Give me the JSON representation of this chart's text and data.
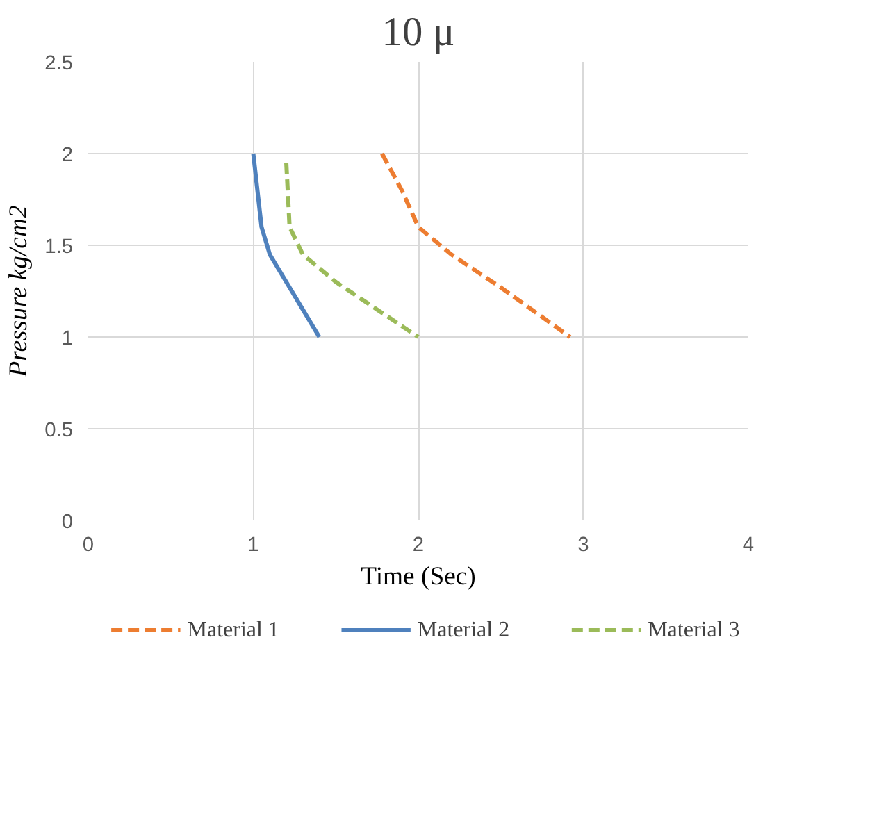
{
  "chart_data": {
    "type": "line",
    "title": "10 μ",
    "xlabel": "Time (Sec)",
    "ylabel": "Pressure kg/cm2",
    "xlim": [
      0,
      4
    ],
    "xticks": [
      0,
      1,
      2,
      3,
      4
    ],
    "ylim": [
      0,
      2.5
    ],
    "yticks": [
      0,
      0.5,
      1,
      1.5,
      2,
      2.5
    ],
    "grid": true,
    "legend": "bottom",
    "marker": "none",
    "series": [
      {
        "name": "Material 1",
        "color": "#ed7d31",
        "line_style": "dashed",
        "x": [
          1.78,
          1.9,
          2.0,
          2.2,
          2.5,
          2.92
        ],
        "values": [
          2.0,
          1.8,
          1.6,
          1.45,
          1.27,
          1.0
        ]
      },
      {
        "name": "Material 2",
        "color": "#4f81bd",
        "line_style": "solid",
        "x": [
          1.0,
          1.05,
          1.1,
          1.2,
          1.3,
          1.4
        ],
        "values": [
          2.0,
          1.6,
          1.45,
          1.3,
          1.15,
          1.0
        ]
      },
      {
        "name": "Material 3",
        "color": "#9bbb59",
        "line_style": "dashed",
        "x": [
          1.2,
          1.22,
          1.3,
          1.5,
          1.75,
          2.0
        ],
        "values": [
          1.95,
          1.6,
          1.45,
          1.3,
          1.15,
          1.0
        ]
      }
    ]
  }
}
